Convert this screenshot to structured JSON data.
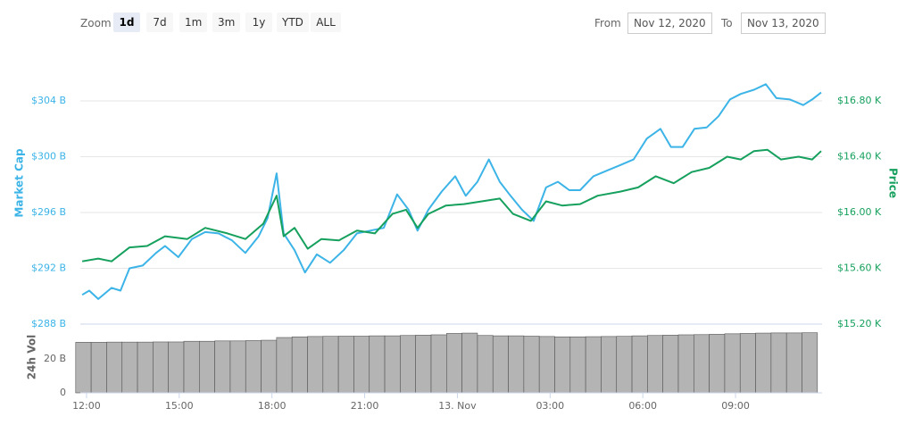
{
  "toolbar": {
    "zoom_label": "Zoom",
    "buttons": [
      "1d",
      "7d",
      "1m",
      "3m",
      "1y",
      "YTD",
      "ALL"
    ],
    "selected": "1d",
    "from_label": "From",
    "from": "Nov 12, 2020",
    "to_label": "To",
    "to": "Nov 13, 2020"
  },
  "chart_data": [
    {
      "type": "line",
      "xlim": [
        -0.2,
        23.8
      ],
      "xticks": [
        {
          "value": 0,
          "label": "12:00"
        },
        {
          "value": 3,
          "label": "15:00"
        },
        {
          "value": 6,
          "label": "18:00"
        },
        {
          "value": 9,
          "label": "21:00"
        },
        {
          "value": 12,
          "label": "13. Nov"
        },
        {
          "value": 15,
          "label": "03:00"
        },
        {
          "value": 18,
          "label": "06:00"
        },
        {
          "value": 21,
          "label": "09:00"
        }
      ],
      "ylim": [
        288,
        308
      ],
      "yticks": [
        {
          "value": 288,
          "label": "$288 B"
        },
        {
          "value": 292,
          "label": "$292 B"
        },
        {
          "value": 296,
          "label": "$296 B"
        },
        {
          "value": 300,
          "label": "$300 B"
        },
        {
          "value": 304,
          "label": "$304 B"
        }
      ],
      "y2lim": [
        15.2,
        17.2
      ],
      "y2ticks": [
        {
          "value": 15.2,
          "label": "$15.20 K"
        },
        {
          "value": 15.6,
          "label": "$15.60 K"
        },
        {
          "value": 16.0,
          "label": "$16.00 K"
        },
        {
          "value": 16.4,
          "label": "$16.40 K"
        },
        {
          "value": 16.8,
          "label": "$16.80 K"
        }
      ],
      "grid": true,
      "series": [
        {
          "name": "Market Cap",
          "color": "#3cb4e7",
          "axis": "y",
          "x": [
            -0.14,
            0.09,
            0.38,
            0.81,
            1.1,
            1.39,
            1.82,
            2.25,
            2.54,
            2.97,
            3.41,
            3.84,
            4.27,
            4.71,
            5.14,
            5.57,
            5.86,
            6.15,
            6.38,
            6.73,
            7.07,
            7.45,
            7.88,
            8.32,
            8.75,
            9.18,
            9.62,
            10.05,
            10.42,
            10.71,
            11.06,
            11.49,
            11.93,
            12.27,
            12.65,
            13.02,
            13.37,
            13.72,
            14.09,
            14.47,
            14.87,
            15.25,
            15.62,
            15.97,
            16.4,
            16.84,
            17.27,
            17.7,
            18.13,
            18.57,
            18.91,
            19.29,
            19.67,
            20.07,
            20.45,
            20.82,
            21.17,
            21.6,
            21.98,
            22.32,
            22.76,
            23.19,
            23.48,
            23.77
          ],
          "values": [
            290.1,
            290.4,
            289.8,
            290.6,
            290.4,
            292.0,
            292.2,
            293.1,
            293.6,
            292.8,
            294.1,
            294.6,
            294.5,
            294.0,
            293.1,
            294.3,
            295.6,
            298.8,
            294.5,
            293.3,
            291.7,
            293.0,
            292.4,
            293.3,
            294.5,
            294.7,
            294.9,
            297.3,
            296.2,
            294.7,
            296.2,
            297.5,
            298.6,
            297.2,
            298.2,
            299.8,
            298.2,
            297.2,
            296.2,
            295.4,
            297.8,
            298.2,
            297.6,
            297.6,
            298.6,
            299.0,
            299.4,
            299.8,
            301.3,
            302.0,
            300.7,
            300.7,
            302.0,
            302.1,
            302.9,
            304.1,
            304.5,
            304.8,
            305.2,
            304.2,
            304.1,
            303.7,
            304.1,
            304.6
          ]
        },
        {
          "name": "Price",
          "color": "#16a05d",
          "axis": "y2",
          "x": [
            -0.14,
            0.38,
            0.81,
            1.39,
            1.96,
            2.54,
            3.26,
            3.84,
            4.56,
            5.14,
            5.72,
            6.15,
            6.38,
            6.73,
            7.16,
            7.6,
            8.17,
            8.75,
            9.33,
            9.9,
            10.34,
            10.71,
            11.06,
            11.63,
            12.21,
            12.79,
            13.37,
            13.8,
            14.38,
            14.87,
            15.39,
            15.97,
            16.54,
            17.27,
            17.85,
            18.42,
            19.0,
            19.58,
            20.15,
            20.73,
            21.17,
            21.6,
            22.03,
            22.47,
            23.04,
            23.48,
            23.77
          ],
          "values": [
            15.65,
            15.67,
            15.65,
            15.75,
            15.76,
            15.83,
            15.81,
            15.89,
            15.85,
            15.81,
            15.92,
            16.12,
            15.83,
            15.89,
            15.74,
            15.81,
            15.8,
            15.87,
            15.85,
            15.99,
            16.02,
            15.89,
            15.99,
            16.05,
            16.06,
            16.08,
            16.1,
            15.99,
            15.94,
            16.08,
            16.05,
            16.06,
            16.12,
            16.15,
            16.18,
            16.26,
            16.21,
            16.29,
            16.32,
            16.4,
            16.38,
            16.44,
            16.45,
            16.38,
            16.4,
            16.38,
            16.44
          ]
        }
      ]
    },
    {
      "type": "bar",
      "name": "24h Vol",
      "color": "#b4b4b4",
      "ylim": [
        0,
        40.5
      ],
      "yticks": [
        0,
        {
          "value": 20,
          "label": "20 B"
        }
      ],
      "x": [
        -0.1,
        0.4,
        0.9,
        1.4,
        1.9,
        2.4,
        2.9,
        3.4,
        3.9,
        4.4,
        4.9,
        5.4,
        5.9,
        6.4,
        6.9,
        7.4,
        7.9,
        8.4,
        8.9,
        9.4,
        9.9,
        10.4,
        10.9,
        11.4,
        11.9,
        12.4,
        12.9,
        13.4,
        13.9,
        14.4,
        14.9,
        15.4,
        15.9,
        16.4,
        16.9,
        17.4,
        17.9,
        18.4,
        18.9,
        19.4,
        19.9,
        20.4,
        20.9,
        21.4,
        21.9,
        22.4,
        22.9,
        23.4
      ],
      "values": [
        29.8,
        29.8,
        29.9,
        29.9,
        29.9,
        30.0,
        30.0,
        30.4,
        30.4,
        30.6,
        30.6,
        30.8,
        31.0,
        32.6,
        33.0,
        33.2,
        33.3,
        33.4,
        33.4,
        33.6,
        33.6,
        33.8,
        34.0,
        34.2,
        35.0,
        35.2,
        33.8,
        33.6,
        33.6,
        33.4,
        33.2,
        33.0,
        33.0,
        33.1,
        33.2,
        33.3,
        33.6,
        33.8,
        34.0,
        34.2,
        34.3,
        34.5,
        34.8,
        35.0,
        35.2,
        35.3,
        35.3,
        35.4
      ]
    }
  ]
}
